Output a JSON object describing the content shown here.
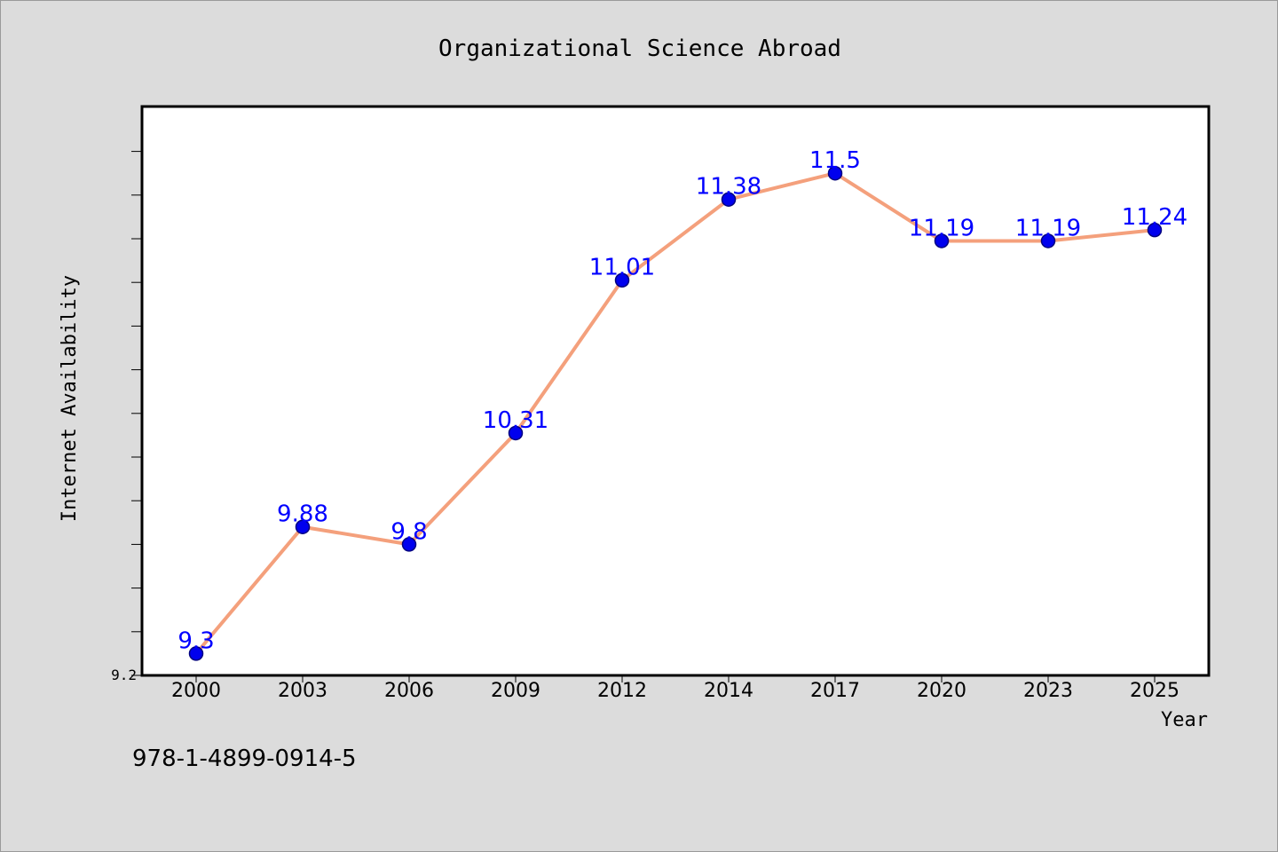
{
  "footer_text": "978-1-4899-0914-5",
  "chart_data": {
    "type": "line",
    "title": "Organizational Science Abroad",
    "xlabel": "Year",
    "ylabel": "Internet Availability",
    "categories": [
      "2000",
      "2003",
      "2006",
      "2009",
      "2012",
      "2014",
      "2017",
      "2020",
      "2023",
      "2025"
    ],
    "series": [
      {
        "values": [
          9.3,
          9.88,
          9.8,
          10.31,
          11.01,
          11.38,
          11.5,
          11.19,
          11.19,
          11.24
        ],
        "labels": [
          "9.3",
          "9.88",
          "9.8",
          "10.31",
          "11.01",
          "11.38",
          "11.5",
          "11.19",
          "11.19",
          "11.24"
        ]
      }
    ],
    "ylim": [
      9.2,
      11.8
    ],
    "y_tick_labels": [
      "9.2"
    ],
    "grid": false,
    "legend": "none",
    "colors": {
      "line": "#f4a07c",
      "marker": "#0000ee",
      "marker_edge": "#000080",
      "data_label": "#0000ff",
      "plot_background": "#ffffff",
      "page_background": "#dcdcdc",
      "axis": "#000000"
    }
  }
}
